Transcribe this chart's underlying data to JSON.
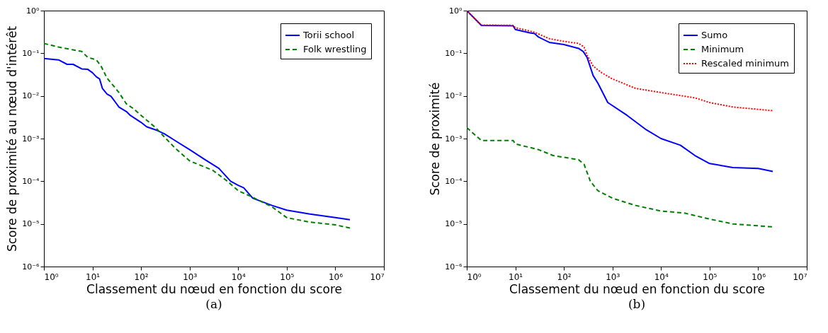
{
  "chart_data": [
    {
      "type": "line",
      "xlabel": "Classement du nœud en fonction du score",
      "ylabel": "Score de proximité au nœud d'intérêt",
      "annotations": [
        "(a)"
      ],
      "log": "xy",
      "legend": "top right",
      "grid": false,
      "xlim": [
        1,
        10000000
      ],
      "xticks": [
        {
          "value": 1,
          "label": "10⁰"
        },
        {
          "value": 10,
          "label": "10¹"
        },
        {
          "value": 100,
          "label": "10²"
        },
        {
          "value": 1000,
          "label": "10³"
        },
        {
          "value": 10000,
          "label": "10⁴"
        },
        {
          "value": 100000,
          "label": "10⁵"
        },
        {
          "value": 1000000,
          "label": "10⁶"
        },
        {
          "value": 10000000,
          "label": "10⁷"
        }
      ],
      "ylim": [
        1e-06,
        1
      ],
      "yticks": [
        {
          "value": 1e-06,
          "label": "10⁻⁶"
        },
        {
          "value": 1e-05,
          "label": "10⁻⁵"
        },
        {
          "value": 0.0001,
          "label": "10⁻⁴"
        },
        {
          "value": 0.001,
          "label": "10⁻³"
        },
        {
          "value": 0.01,
          "label": "10⁻²"
        },
        {
          "value": 0.1,
          "label": "10⁻¹"
        },
        {
          "value": 1,
          "label": "10⁰"
        }
      ],
      "series": [
        {
          "name": "Torii school",
          "color": "#0000ff",
          "line_style": "solid",
          "x": [
            1,
            2,
            3,
            4,
            6,
            8,
            10,
            12,
            14,
            16,
            20,
            24,
            30,
            35,
            40,
            50,
            60,
            100,
            130,
            200,
            300,
            500,
            1000,
            2000,
            4000,
            7000,
            10000,
            13000,
            20000,
            50000,
            100000,
            300000,
            1000000,
            2000000
          ],
          "values": [
            0.075,
            0.07,
            0.055,
            0.055,
            0.043,
            0.042,
            0.035,
            0.028,
            0.025,
            0.015,
            0.011,
            0.0098,
            0.007,
            0.0055,
            0.005,
            0.0043,
            0.0035,
            0.0024,
            0.0019,
            0.0016,
            0.0013,
            0.0009,
            0.00055,
            0.00033,
            0.0002,
            0.0001,
            8e-05,
            7e-05,
            4e-05,
            2.7e-05,
            2.1e-05,
            1.7e-05,
            1.4e-05,
            1.25e-05
          ]
        },
        {
          "name": "Folk wrestling",
          "color": "#008000",
          "line_style": "dashed",
          "x": [
            1,
            2,
            4,
            6,
            8,
            12,
            15,
            20,
            30,
            35,
            50,
            70,
            100,
            200,
            300,
            500,
            1000,
            3000,
            6000,
            10000,
            20000,
            50000,
            100000,
            300000,
            1000000,
            2000000
          ],
          "values": [
            0.17,
            0.14,
            0.12,
            0.11,
            0.08,
            0.07,
            0.05,
            0.026,
            0.015,
            0.012,
            0.0065,
            0.005,
            0.0035,
            0.0018,
            0.0011,
            0.0006,
            0.0003,
            0.00018,
            0.0001,
            6e-05,
            4.2e-05,
            2.5e-05,
            1.4e-05,
            1.1e-05,
            9.5e-06,
            8e-06
          ]
        }
      ]
    },
    {
      "type": "line",
      "xlabel": "Classement du nœud en fonction du score",
      "ylabel": "Score de proximité",
      "annotations": [
        "(b)"
      ],
      "log": "xy",
      "legend": "top right",
      "grid": false,
      "xlim": [
        1,
        10000000
      ],
      "xticks": [
        {
          "value": 1,
          "label": "10⁰"
        },
        {
          "value": 10,
          "label": "10¹"
        },
        {
          "value": 100,
          "label": "10²"
        },
        {
          "value": 1000,
          "label": "10³"
        },
        {
          "value": 10000,
          "label": "10⁴"
        },
        {
          "value": 100000,
          "label": "10⁵"
        },
        {
          "value": 1000000,
          "label": "10⁶"
        },
        {
          "value": 10000000,
          "label": "10⁷"
        }
      ],
      "ylim": [
        1e-06,
        1
      ],
      "yticks": [
        {
          "value": 1e-06,
          "label": "10⁻⁶"
        },
        {
          "value": 1e-05,
          "label": "10⁻⁵"
        },
        {
          "value": 0.0001,
          "label": "10⁻⁴"
        },
        {
          "value": 0.001,
          "label": "10⁻³"
        },
        {
          "value": 0.01,
          "label": "10⁻²"
        },
        {
          "value": 0.1,
          "label": "10⁻¹"
        },
        {
          "value": 1,
          "label": "10⁰"
        }
      ],
      "series": [
        {
          "name": "Sumo",
          "color": "#0000ff",
          "line_style": "solid",
          "x": [
            1,
            2,
            9,
            10,
            20,
            25,
            30,
            50,
            100,
            200,
            250,
            300,
            400,
            500,
            800,
            2000,
            5000,
            10000,
            25000,
            50000,
            100000,
            300000,
            1000000,
            2000000
          ],
          "values": [
            1,
            0.45,
            0.44,
            0.36,
            0.3,
            0.29,
            0.24,
            0.18,
            0.16,
            0.13,
            0.11,
            0.08,
            0.03,
            0.02,
            0.007,
            0.0035,
            0.0016,
            0.001,
            0.0007,
            0.0004,
            0.00026,
            0.00021,
            0.0002,
            0.00017
          ]
        },
        {
          "name": "Minimum",
          "color": "#008000",
          "line_style": "dashed",
          "x": [
            1,
            2,
            9,
            10,
            30,
            60,
            200,
            260,
            350,
            500,
            1000,
            3000,
            10000,
            30000,
            100000,
            300000,
            2000000
          ],
          "values": [
            0.0018,
            0.0009,
            0.0009,
            0.00075,
            0.00055,
            0.0004,
            0.00032,
            0.00025,
            0.0001,
            6e-05,
            4e-05,
            2.7e-05,
            2e-05,
            1.8e-05,
            1.3e-05,
            1e-05,
            8.5e-06
          ]
        },
        {
          "name": "Rescaled minimum",
          "color": "#ff0000",
          "line_style": "dotted",
          "x": [
            1,
            2,
            9,
            10,
            25,
            50,
            100,
            200,
            260,
            300,
            400,
            600,
            1000,
            3000,
            10000,
            50000,
            100000,
            300000,
            2000000
          ],
          "values": [
            1,
            0.46,
            0.45,
            0.4,
            0.31,
            0.22,
            0.19,
            0.17,
            0.14,
            0.09,
            0.05,
            0.035,
            0.025,
            0.015,
            0.012,
            0.009,
            0.007,
            0.0055,
            0.0045
          ]
        }
      ]
    }
  ]
}
